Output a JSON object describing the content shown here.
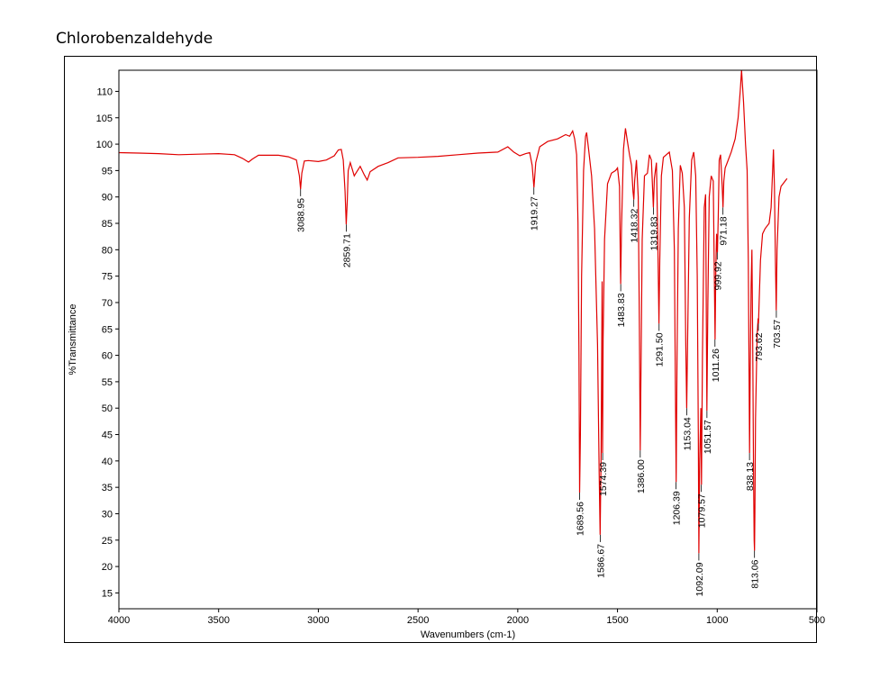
{
  "page": {
    "title": "Chlorobenzaldehyde"
  },
  "chart_data": {
    "type": "line",
    "xlabel": "Wavenumbers (cm-1)",
    "ylabel": "%Transmittance",
    "xlim": [
      4000,
      500
    ],
    "ylim": [
      12,
      114
    ],
    "x_ticks": [
      4000,
      3500,
      3000,
      2500,
      2000,
      1500,
      1000,
      500
    ],
    "y_ticks": [
      15,
      20,
      25,
      30,
      35,
      40,
      45,
      50,
      55,
      60,
      65,
      70,
      75,
      80,
      85,
      90,
      95,
      100,
      105,
      110
    ],
    "grid": false,
    "line_color": "#e00000",
    "series": [
      {
        "points": [
          [
            4000,
            98.4
          ],
          [
            3900,
            98.3
          ],
          [
            3800,
            98.2
          ],
          [
            3700,
            98.0
          ],
          [
            3600,
            98.1
          ],
          [
            3500,
            98.2
          ],
          [
            3420,
            98.0
          ],
          [
            3380,
            97.3
          ],
          [
            3350,
            96.6
          ],
          [
            3330,
            97.2
          ],
          [
            3300,
            97.9
          ],
          [
            3200,
            97.9
          ],
          [
            3150,
            97.6
          ],
          [
            3110,
            97.0
          ],
          [
            3095,
            94.0
          ],
          [
            3089,
            91.5
          ],
          [
            3083,
            94.5
          ],
          [
            3070,
            96.8
          ],
          [
            3050,
            96.9
          ],
          [
            3000,
            96.7
          ],
          [
            2960,
            97.0
          ],
          [
            2920,
            97.8
          ],
          [
            2900,
            98.9
          ],
          [
            2885,
            99.0
          ],
          [
            2875,
            97.0
          ],
          [
            2866,
            91.0
          ],
          [
            2860,
            84.8
          ],
          [
            2855,
            89.0
          ],
          [
            2850,
            95.0
          ],
          [
            2840,
            96.5
          ],
          [
            2820,
            94.0
          ],
          [
            2810,
            94.6
          ],
          [
            2790,
            95.8
          ],
          [
            2770,
            94.2
          ],
          [
            2755,
            93.2
          ],
          [
            2740,
            94.8
          ],
          [
            2700,
            95.8
          ],
          [
            2650,
            96.5
          ],
          [
            2600,
            97.4
          ],
          [
            2500,
            97.5
          ],
          [
            2400,
            97.7
          ],
          [
            2300,
            98.0
          ],
          [
            2200,
            98.3
          ],
          [
            2100,
            98.5
          ],
          [
            2050,
            99.5
          ],
          [
            2020,
            98.5
          ],
          [
            1990,
            97.8
          ],
          [
            1960,
            98.2
          ],
          [
            1940,
            98.4
          ],
          [
            1928,
            96.0
          ],
          [
            1919,
            91.8
          ],
          [
            1910,
            96.5
          ],
          [
            1890,
            99.5
          ],
          [
            1850,
            100.5
          ],
          [
            1800,
            101.0
          ],
          [
            1760,
            101.8
          ],
          [
            1740,
            101.5
          ],
          [
            1725,
            102.5
          ],
          [
            1715,
            101.0
          ],
          [
            1705,
            98.0
          ],
          [
            1698,
            85.0
          ],
          [
            1693,
            60.0
          ],
          [
            1690,
            34.0
          ],
          [
            1686,
            45.0
          ],
          [
            1680,
            75.0
          ],
          [
            1670,
            95.0
          ],
          [
            1660,
            101.5
          ],
          [
            1655,
            102.2
          ],
          [
            1645,
            99.0
          ],
          [
            1630,
            94.0
          ],
          [
            1615,
            84.0
          ],
          [
            1600,
            62.0
          ],
          [
            1592,
            38.0
          ],
          [
            1587,
            26.0
          ],
          [
            1582,
            42.0
          ],
          [
            1577,
            74.0
          ],
          [
            1575,
            41.5
          ],
          [
            1572,
            63.0
          ],
          [
            1565,
            82.0
          ],
          [
            1550,
            92.5
          ],
          [
            1530,
            94.5
          ],
          [
            1510,
            95.0
          ],
          [
            1500,
            95.5
          ],
          [
            1490,
            92.0
          ],
          [
            1486,
            78.0
          ],
          [
            1484,
            73.5
          ],
          [
            1480,
            84.0
          ],
          [
            1470,
            99.0
          ],
          [
            1460,
            103.0
          ],
          [
            1450,
            100.5
          ],
          [
            1440,
            98.0
          ],
          [
            1430,
            96.0
          ],
          [
            1422,
            91.0
          ],
          [
            1418,
            89.5
          ],
          [
            1414,
            93.0
          ],
          [
            1405,
            97.0
          ],
          [
            1396,
            90.0
          ],
          [
            1390,
            65.0
          ],
          [
            1386,
            42.0
          ],
          [
            1382,
            58.0
          ],
          [
            1376,
            82.0
          ],
          [
            1365,
            94.0
          ],
          [
            1350,
            94.5
          ],
          [
            1340,
            98.0
          ],
          [
            1330,
            97.0
          ],
          [
            1325,
            92.5
          ],
          [
            1320,
            88.0
          ],
          [
            1315,
            93.5
          ],
          [
            1305,
            96.5
          ],
          [
            1298,
            82.0
          ],
          [
            1292,
            66.0
          ],
          [
            1288,
            78.0
          ],
          [
            1280,
            94.0
          ],
          [
            1270,
            97.5
          ],
          [
            1255,
            98.0
          ],
          [
            1240,
            98.5
          ],
          [
            1225,
            95.0
          ],
          [
            1215,
            80.0
          ],
          [
            1210,
            55.0
          ],
          [
            1206,
            36.0
          ],
          [
            1202,
            58.0
          ],
          [
            1195,
            84.0
          ],
          [
            1185,
            96.0
          ],
          [
            1175,
            94.5
          ],
          [
            1165,
            88.0
          ],
          [
            1158,
            63.0
          ],
          [
            1153,
            50.0
          ],
          [
            1148,
            64.0
          ],
          [
            1140,
            86.0
          ],
          [
            1128,
            97.0
          ],
          [
            1118,
            98.5
          ],
          [
            1108,
            94.0
          ],
          [
            1100,
            75.0
          ],
          [
            1095,
            45.0
          ],
          [
            1092,
            22.5
          ],
          [
            1088,
            40.0
          ],
          [
            1082,
            50.0
          ],
          [
            1079,
            35.5
          ],
          [
            1074,
            60.0
          ],
          [
            1065,
            88.0
          ],
          [
            1058,
            90.5
          ],
          [
            1052,
            49.5
          ],
          [
            1047,
            70.0
          ],
          [
            1040,
            90.0
          ],
          [
            1030,
            94.0
          ],
          [
            1020,
            93.0
          ],
          [
            1015,
            76.0
          ],
          [
            1011,
            63.0
          ],
          [
            1007,
            76.0
          ],
          [
            1003,
            83.0
          ],
          [
            999,
            79.5
          ],
          [
            995,
            86.0
          ],
          [
            990,
            97.0
          ],
          [
            983,
            98.0
          ],
          [
            975,
            92.0
          ],
          [
            971,
            88.0
          ],
          [
            967,
            93.0
          ],
          [
            960,
            95.5
          ],
          [
            950,
            96.5
          ],
          [
            930,
            98.5
          ],
          [
            910,
            101.0
          ],
          [
            895,
            105.0
          ],
          [
            885,
            110.0
          ],
          [
            878,
            114.0
          ],
          [
            868,
            108.0
          ],
          [
            858,
            100.0
          ],
          [
            850,
            95.0
          ],
          [
            844,
            78.0
          ],
          [
            840,
            55.0
          ],
          [
            838,
            41.5
          ],
          [
            835,
            55.0
          ],
          [
            830,
            73.0
          ],
          [
            826,
            80.0
          ],
          [
            822,
            62.0
          ],
          [
            818,
            38.0
          ],
          [
            815,
            25.0
          ],
          [
            813,
            23.0
          ],
          [
            811,
            30.0
          ],
          [
            808,
            48.0
          ],
          [
            800,
            64.0
          ],
          [
            795,
            67.0
          ],
          [
            793,
            66.0
          ],
          [
            790,
            70.0
          ],
          [
            783,
            78.0
          ],
          [
            773,
            83.0
          ],
          [
            760,
            84.0
          ],
          [
            740,
            85.0
          ],
          [
            730,
            88.0
          ],
          [
            722,
            95.0
          ],
          [
            718,
            99.0
          ],
          [
            713,
            92.0
          ],
          [
            708,
            78.0
          ],
          [
            704,
            68.5
          ],
          [
            700,
            80.0
          ],
          [
            690,
            90.0
          ],
          [
            680,
            92.0
          ],
          [
            670,
            92.5
          ],
          [
            660,
            93.0
          ],
          [
            650,
            93.5
          ]
        ]
      }
    ],
    "peak_labels": [
      {
        "x": 3088.95,
        "y": 91.5,
        "text": "3088.95"
      },
      {
        "x": 2859.71,
        "y": 84.8,
        "text": "2859.71"
      },
      {
        "x": 1919.27,
        "y": 91.8,
        "text": "1919.27"
      },
      {
        "x": 1689.56,
        "y": 34.0,
        "text": "1689.56"
      },
      {
        "x": 1586.67,
        "y": 26.0,
        "text": "1586.67"
      },
      {
        "x": 1574.39,
        "y": 41.5,
        "text": "1574.39"
      },
      {
        "x": 1483.83,
        "y": 73.5,
        "text": "1483.83"
      },
      {
        "x": 1418.32,
        "y": 89.5,
        "text": "1418.32"
      },
      {
        "x": 1386.0,
        "y": 42.0,
        "text": "1386.00"
      },
      {
        "x": 1319.83,
        "y": 88.0,
        "text": "1319.83"
      },
      {
        "x": 1291.5,
        "y": 66.0,
        "text": "1291.50"
      },
      {
        "x": 1206.39,
        "y": 36.0,
        "text": "1206.39"
      },
      {
        "x": 1153.04,
        "y": 50.0,
        "text": "1153.04"
      },
      {
        "x": 1092.09,
        "y": 22.5,
        "text": "1092.09"
      },
      {
        "x": 1079.57,
        "y": 35.5,
        "text": "1079.57"
      },
      {
        "x": 1051.57,
        "y": 49.5,
        "text": "1051.57"
      },
      {
        "x": 1011.26,
        "y": 63.0,
        "text": "1011.26"
      },
      {
        "x": 999.92,
        "y": 79.5,
        "text": "999.92"
      },
      {
        "x": 971.18,
        "y": 88.0,
        "text": "971.18"
      },
      {
        "x": 838.13,
        "y": 41.5,
        "text": "838.13"
      },
      {
        "x": 813.06,
        "y": 23.0,
        "text": "813.06"
      },
      {
        "x": 793.62,
        "y": 66.0,
        "text": "793.62"
      },
      {
        "x": 703.57,
        "y": 68.5,
        "text": "703.57"
      }
    ]
  }
}
